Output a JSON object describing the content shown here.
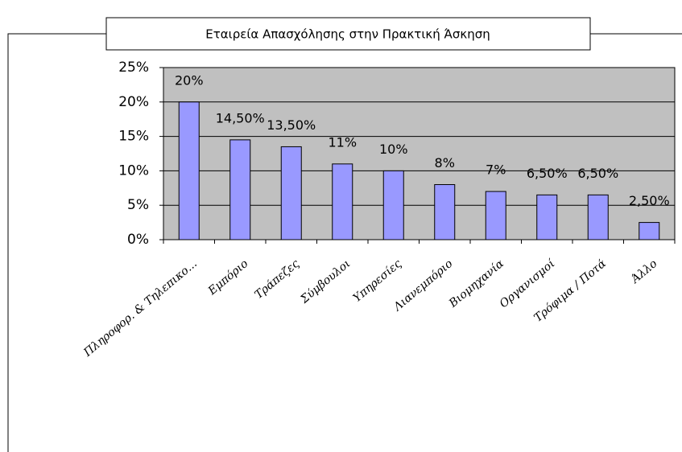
{
  "chart_data": {
    "type": "bar",
    "title": "Εταιρεία Απασχόλησης στην Πρακτική Άσκηση",
    "categories": [
      "Πληροφορ. & Τηλεπικο...",
      "Εμπόριο",
      "Τράπεζες",
      "Σύμβουλοι",
      "Υπηρεσίες",
      "Λιανεμπόριο",
      "Βιομηχανία",
      "Οργανισμοί",
      "Τρόφιμα / Ποτά",
      "Άλλο"
    ],
    "values": [
      20,
      14.5,
      13.5,
      11,
      10,
      8,
      7,
      6.5,
      6.5,
      2.5
    ],
    "value_labels": [
      "20%",
      "14,50%",
      "13,50%",
      "11%",
      "10%",
      "8%",
      "7%",
      "6,50%",
      "6,50%",
      "2,50%"
    ],
    "color": "#9999ff",
    "ylim": [
      0,
      25
    ],
    "yticks": [
      {
        "value": 0,
        "label": "0%"
      },
      {
        "value": 5,
        "label": "5%"
      },
      {
        "value": 10,
        "label": "10%"
      },
      {
        "value": 15,
        "label": "15%"
      },
      {
        "value": 20,
        "label": "20%"
      },
      {
        "value": 25,
        "label": "25%"
      }
    ],
    "grid": true
  }
}
